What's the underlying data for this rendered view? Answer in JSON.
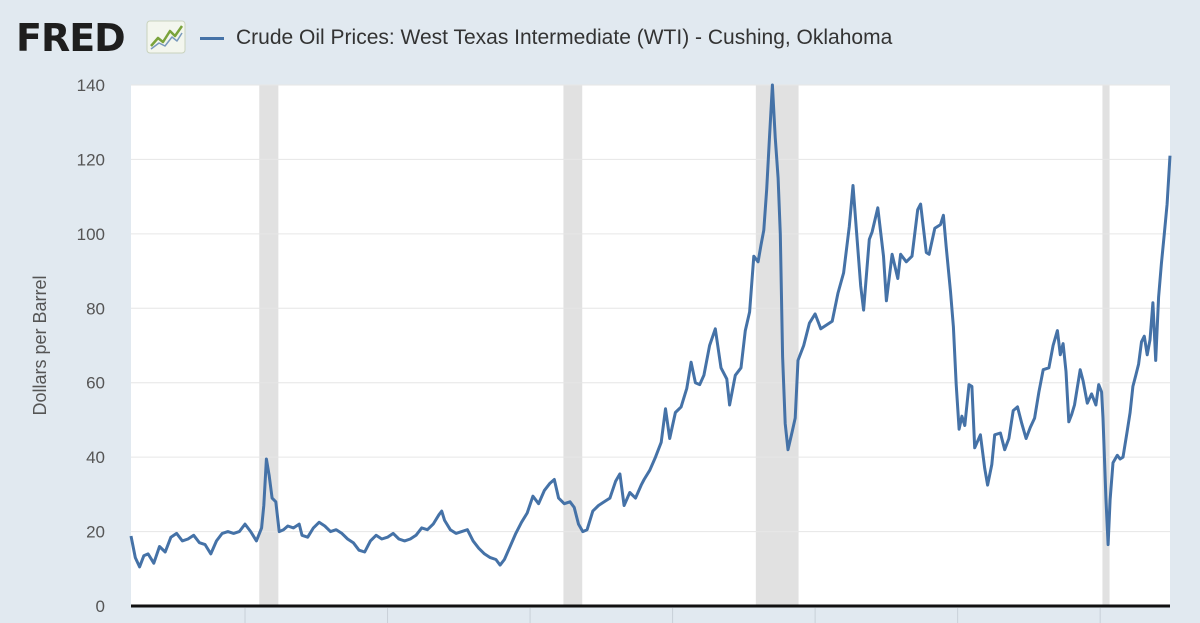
{
  "header": {
    "logo_text": "FRED",
    "logo_icon": "trend-line-icon",
    "series_title": "Crude Oil Prices: West Texas Intermediate (WTI) - Cushing, Oklahoma"
  },
  "colors": {
    "line": "#4572a7",
    "recession": "#e1e1e1",
    "plot_bg": "#ffffff",
    "page_bg": "#e1e9f0",
    "grid": "#e6e6e6"
  },
  "chart_data": {
    "type": "line",
    "title": "Crude Oil Prices: West Texas Intermediate (WTI) - Cushing, Oklahoma",
    "xlabel": "",
    "ylabel": "Dollars per Barrel",
    "ylim": [
      0,
      140
    ],
    "xlim": [
      1986.0,
      2022.45
    ],
    "yticks": [
      0,
      20,
      40,
      60,
      80,
      100,
      120,
      140
    ],
    "xticks": [
      1990,
      1995,
      2000,
      2005,
      2010,
      2015,
      2020
    ],
    "show_x_tick_labels": false,
    "grid": true,
    "recessions": [
      [
        1990.5,
        1991.17
      ],
      [
        2001.17,
        2001.83
      ],
      [
        2007.92,
        2009.42
      ],
      [
        2020.08,
        2020.33
      ]
    ],
    "series": [
      {
        "name": "Crude Oil Prices: West Texas Intermediate (WTI) - Cushing, Oklahoma",
        "points": [
          [
            1986.0,
            18.8
          ],
          [
            1986.15,
            13.0
          ],
          [
            1986.3,
            10.5
          ],
          [
            1986.45,
            13.5
          ],
          [
            1986.6,
            14.0
          ],
          [
            1986.8,
            11.5
          ],
          [
            1987.0,
            16.0
          ],
          [
            1987.2,
            14.5
          ],
          [
            1987.4,
            18.5
          ],
          [
            1987.6,
            19.5
          ],
          [
            1987.8,
            17.5
          ],
          [
            1988.0,
            18.0
          ],
          [
            1988.2,
            19.0
          ],
          [
            1988.4,
            17.0
          ],
          [
            1988.6,
            16.5
          ],
          [
            1988.8,
            14.0
          ],
          [
            1989.0,
            17.5
          ],
          [
            1989.2,
            19.5
          ],
          [
            1989.4,
            20.0
          ],
          [
            1989.6,
            19.5
          ],
          [
            1989.8,
            20.0
          ],
          [
            1990.0,
            22.0
          ],
          [
            1990.2,
            20.0
          ],
          [
            1990.4,
            17.5
          ],
          [
            1990.58,
            21.0
          ],
          [
            1990.66,
            27.0
          ],
          [
            1990.75,
            39.5
          ],
          [
            1990.85,
            35.0
          ],
          [
            1990.95,
            29.0
          ],
          [
            1991.08,
            28.0
          ],
          [
            1991.2,
            20.0
          ],
          [
            1991.35,
            20.5
          ],
          [
            1991.5,
            21.5
          ],
          [
            1991.7,
            21.0
          ],
          [
            1991.9,
            22.0
          ],
          [
            1992.0,
            19.0
          ],
          [
            1992.2,
            18.5
          ],
          [
            1992.4,
            21.0
          ],
          [
            1992.6,
            22.5
          ],
          [
            1992.8,
            21.5
          ],
          [
            1993.0,
            20.0
          ],
          [
            1993.2,
            20.5
          ],
          [
            1993.4,
            19.5
          ],
          [
            1993.6,
            18.0
          ],
          [
            1993.8,
            17.0
          ],
          [
            1994.0,
            15.0
          ],
          [
            1994.2,
            14.5
          ],
          [
            1994.4,
            17.5
          ],
          [
            1994.6,
            19.0
          ],
          [
            1994.8,
            18.0
          ],
          [
            1995.0,
            18.5
          ],
          [
            1995.2,
            19.5
          ],
          [
            1995.4,
            18.0
          ],
          [
            1995.6,
            17.5
          ],
          [
            1995.8,
            18.0
          ],
          [
            1996.0,
            19.0
          ],
          [
            1996.2,
            21.0
          ],
          [
            1996.4,
            20.5
          ],
          [
            1996.6,
            22.0
          ],
          [
            1996.8,
            24.5
          ],
          [
            1996.9,
            25.5
          ],
          [
            1997.0,
            23.0
          ],
          [
            1997.2,
            20.5
          ],
          [
            1997.4,
            19.5
          ],
          [
            1997.6,
            20.0
          ],
          [
            1997.8,
            20.5
          ],
          [
            1998.0,
            17.5
          ],
          [
            1998.2,
            15.5
          ],
          [
            1998.4,
            14.0
          ],
          [
            1998.6,
            13.0
          ],
          [
            1998.8,
            12.5
          ],
          [
            1998.95,
            11.0
          ],
          [
            1999.1,
            12.5
          ],
          [
            1999.3,
            16.0
          ],
          [
            1999.5,
            19.5
          ],
          [
            1999.7,
            22.5
          ],
          [
            1999.9,
            25.0
          ],
          [
            2000.1,
            29.5
          ],
          [
            2000.3,
            27.5
          ],
          [
            2000.5,
            31.0
          ],
          [
            2000.7,
            33.0
          ],
          [
            2000.85,
            34.0
          ],
          [
            2001.0,
            29.0
          ],
          [
            2001.2,
            27.5
          ],
          [
            2001.4,
            28.0
          ],
          [
            2001.55,
            26.5
          ],
          [
            2001.7,
            22.0
          ],
          [
            2001.85,
            20.0
          ],
          [
            2002.0,
            20.5
          ],
          [
            2002.2,
            25.5
          ],
          [
            2002.4,
            27.0
          ],
          [
            2002.6,
            28.0
          ],
          [
            2002.8,
            29.0
          ],
          [
            2003.0,
            33.5
          ],
          [
            2003.15,
            35.5
          ],
          [
            2003.3,
            27.0
          ],
          [
            2003.5,
            30.5
          ],
          [
            2003.7,
            29.0
          ],
          [
            2003.9,
            32.5
          ],
          [
            2004.0,
            34.0
          ],
          [
            2004.2,
            36.5
          ],
          [
            2004.4,
            40.0
          ],
          [
            2004.6,
            44.0
          ],
          [
            2004.75,
            53.0
          ],
          [
            2004.9,
            45.0
          ],
          [
            2005.1,
            52.0
          ],
          [
            2005.3,
            53.5
          ],
          [
            2005.5,
            58.5
          ],
          [
            2005.65,
            65.5
          ],
          [
            2005.8,
            60.0
          ],
          [
            2005.95,
            59.5
          ],
          [
            2006.1,
            62.0
          ],
          [
            2006.3,
            70.0
          ],
          [
            2006.5,
            74.5
          ],
          [
            2006.7,
            64.0
          ],
          [
            2006.9,
            61.0
          ],
          [
            2007.0,
            54.0
          ],
          [
            2007.2,
            62.0
          ],
          [
            2007.4,
            64.0
          ],
          [
            2007.55,
            74.0
          ],
          [
            2007.7,
            79.0
          ],
          [
            2007.85,
            94.0
          ],
          [
            2008.0,
            92.5
          ],
          [
            2008.1,
            97.0
          ],
          [
            2008.2,
            101.0
          ],
          [
            2008.3,
            112.0
          ],
          [
            2008.4,
            126.0
          ],
          [
            2008.5,
            140.0
          ],
          [
            2008.6,
            126.0
          ],
          [
            2008.7,
            115.0
          ],
          [
            2008.78,
            100.0
          ],
          [
            2008.86,
            67.0
          ],
          [
            2008.95,
            49.0
          ],
          [
            2009.05,
            42.0
          ],
          [
            2009.2,
            47.0
          ],
          [
            2009.3,
            50.5
          ],
          [
            2009.4,
            66.0
          ],
          [
            2009.6,
            70.0
          ],
          [
            2009.8,
            76.0
          ],
          [
            2010.0,
            78.5
          ],
          [
            2010.2,
            74.5
          ],
          [
            2010.4,
            75.5
          ],
          [
            2010.6,
            76.5
          ],
          [
            2010.8,
            84.0
          ],
          [
            2011.0,
            89.5
          ],
          [
            2011.2,
            102.0
          ],
          [
            2011.33,
            113.0
          ],
          [
            2011.45,
            101.0
          ],
          [
            2011.6,
            86.0
          ],
          [
            2011.7,
            79.5
          ],
          [
            2011.9,
            98.5
          ],
          [
            2012.0,
            100.5
          ],
          [
            2012.2,
            107.0
          ],
          [
            2012.4,
            94.0
          ],
          [
            2012.5,
            82.0
          ],
          [
            2012.7,
            94.5
          ],
          [
            2012.9,
            88.0
          ],
          [
            2013.0,
            94.5
          ],
          [
            2013.2,
            92.5
          ],
          [
            2013.4,
            94.0
          ],
          [
            2013.6,
            106.5
          ],
          [
            2013.7,
            108.0
          ],
          [
            2013.9,
            95.0
          ],
          [
            2014.0,
            94.5
          ],
          [
            2014.2,
            101.5
          ],
          [
            2014.4,
            102.5
          ],
          [
            2014.5,
            105.0
          ],
          [
            2014.6,
            96.5
          ],
          [
            2014.75,
            84.5
          ],
          [
            2014.85,
            75.0
          ],
          [
            2014.95,
            59.5
          ],
          [
            2015.05,
            47.5
          ],
          [
            2015.15,
            51.0
          ],
          [
            2015.25,
            48.5
          ],
          [
            2015.4,
            59.5
          ],
          [
            2015.5,
            59.0
          ],
          [
            2015.6,
            42.5
          ],
          [
            2015.8,
            46.0
          ],
          [
            2015.95,
            37.0
          ],
          [
            2016.05,
            32.5
          ],
          [
            2016.2,
            38.0
          ],
          [
            2016.3,
            46.0
          ],
          [
            2016.5,
            46.5
          ],
          [
            2016.65,
            42.0
          ],
          [
            2016.8,
            45.0
          ],
          [
            2016.95,
            52.5
          ],
          [
            2017.1,
            53.5
          ],
          [
            2017.25,
            49.0
          ],
          [
            2017.4,
            45.0
          ],
          [
            2017.55,
            48.0
          ],
          [
            2017.7,
            50.5
          ],
          [
            2017.85,
            57.5
          ],
          [
            2018.0,
            63.5
          ],
          [
            2018.2,
            64.0
          ],
          [
            2018.35,
            70.0
          ],
          [
            2018.5,
            74.0
          ],
          [
            2018.6,
            67.5
          ],
          [
            2018.7,
            70.5
          ],
          [
            2018.8,
            63.0
          ],
          [
            2018.9,
            49.5
          ],
          [
            2019.0,
            51.5
          ],
          [
            2019.1,
            54.0
          ],
          [
            2019.3,
            63.5
          ],
          [
            2019.4,
            60.5
          ],
          [
            2019.55,
            54.5
          ],
          [
            2019.7,
            57.0
          ],
          [
            2019.85,
            54.0
          ],
          [
            2019.95,
            59.5
          ],
          [
            2020.05,
            57.5
          ],
          [
            2020.1,
            50.5
          ],
          [
            2020.2,
            29.0
          ],
          [
            2020.28,
            16.5
          ],
          [
            2020.35,
            28.5
          ],
          [
            2020.45,
            38.5
          ],
          [
            2020.6,
            40.5
          ],
          [
            2020.7,
            39.5
          ],
          [
            2020.8,
            40.0
          ],
          [
            2020.95,
            47.0
          ],
          [
            2021.05,
            52.0
          ],
          [
            2021.15,
            59.0
          ],
          [
            2021.25,
            62.0
          ],
          [
            2021.35,
            65.0
          ],
          [
            2021.45,
            71.0
          ],
          [
            2021.55,
            72.5
          ],
          [
            2021.65,
            67.5
          ],
          [
            2021.75,
            71.5
          ],
          [
            2021.85,
            81.5
          ],
          [
            2021.95,
            66.0
          ],
          [
            2022.05,
            83.0
          ],
          [
            2022.15,
            92.0
          ],
          [
            2022.25,
            100.0
          ],
          [
            2022.35,
            108.0
          ],
          [
            2022.45,
            121.0
          ]
        ]
      }
    ]
  }
}
